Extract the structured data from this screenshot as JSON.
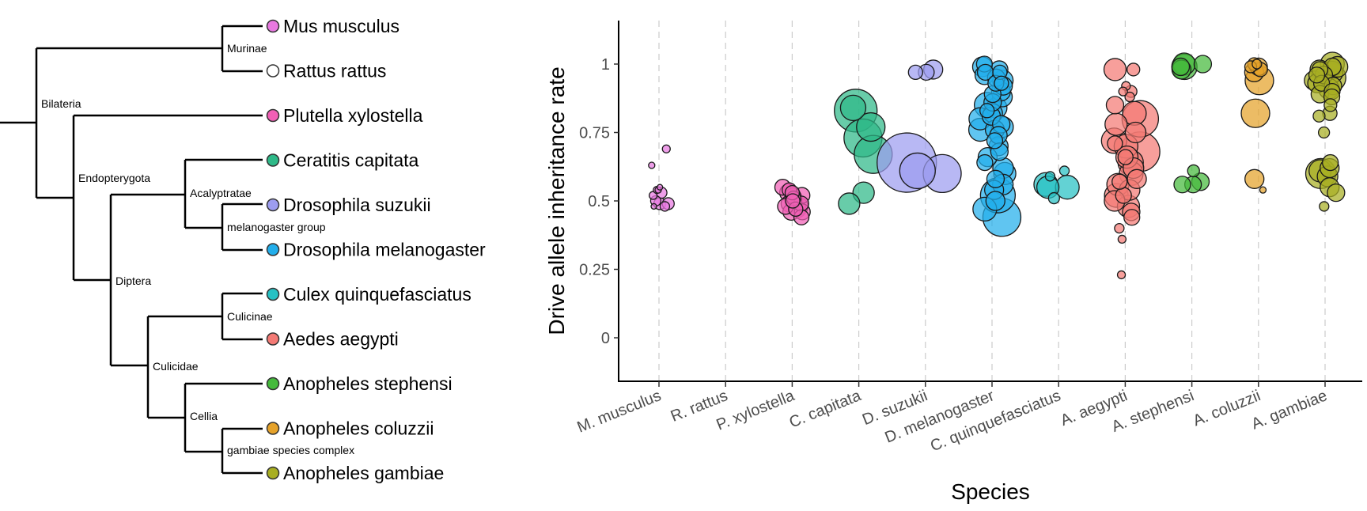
{
  "tree": {
    "leaves": [
      {
        "id": "mus",
        "label": "Mus musculus",
        "color": "#E879E0",
        "hollow": false
      },
      {
        "id": "rat",
        "label": "Rattus rattus",
        "color": "#FFFFFF",
        "hollow": true
      },
      {
        "id": "plu",
        "label": "Plutella xylostella",
        "color": "#F15FB5",
        "hollow": false
      },
      {
        "id": "cer",
        "label": "Ceratitis capitata",
        "color": "#2EB988",
        "hollow": false
      },
      {
        "id": "dsu",
        "label": "Drosophila suzukii",
        "color": "#9D9DF0",
        "hollow": false
      },
      {
        "id": "dme",
        "label": "Drosophila melanogaster",
        "color": "#22AEEB",
        "hollow": false
      },
      {
        "id": "cul",
        "label": "Culex quinquefasciatus",
        "color": "#27C1C4",
        "hollow": false
      },
      {
        "id": "aed",
        "label": "Aedes aegypti",
        "color": "#F47A75",
        "hollow": false
      },
      {
        "id": "ast",
        "label": "Anopheles stephensi",
        "color": "#45BA3C",
        "hollow": false
      },
      {
        "id": "aco",
        "label": "Anopheles coluzzii",
        "color": "#E5A22A",
        "hollow": false
      },
      {
        "id": "aga",
        "label": "Anopheles gambiae",
        "color": "#A8AE22",
        "hollow": false
      }
    ],
    "clades": {
      "murinae": "Murinae",
      "bilateria": "Bilateria",
      "endopterygota": "Endopterygota",
      "acalyptratae": "Acalyptratae",
      "melanogaster_group": "melanogaster group",
      "diptera": "Diptera",
      "culicinae": "Culicinae",
      "culicidae": "Culicidae",
      "cellia": "Cellia",
      "gambiae_complex": "gambiae species complex"
    }
  },
  "chart_data": {
    "type": "scatter",
    "xlabel": "Species",
    "ylabel": "Drive allele inheritance rate",
    "ylim": [
      -0.16,
      1.15
    ],
    "y_ticks": [
      0,
      0.25,
      0.5,
      0.75,
      1
    ],
    "y_tick_labels": [
      "0",
      "0.25",
      "0.5",
      "0.75",
      "1"
    ],
    "categories": [
      "M. musculus",
      "R. rattus",
      "P. xylostella",
      "C. capitata",
      "D. suzukii",
      "D. melanogaster",
      "C. quinquefasciatus",
      "A. aegypti",
      "A. stephensi",
      "A. coluzzii",
      "A. gambiae"
    ],
    "grid": "vertical dashed guides at each category",
    "series": [
      {
        "category": "M. musculus",
        "color": "#E879E0",
        "points": [
          {
            "y": 0.69,
            "s": 1
          },
          {
            "y": 0.63,
            "s": 0.8
          },
          {
            "y": 0.55,
            "s": 0.7
          },
          {
            "y": 0.54,
            "s": 0.9
          },
          {
            "y": 0.54,
            "s": 0.8
          },
          {
            "y": 0.53,
            "s": 1.4
          },
          {
            "y": 0.52,
            "s": 1
          },
          {
            "y": 0.5,
            "s": 1.3
          },
          {
            "y": 0.49,
            "s": 1.5
          },
          {
            "y": 0.49,
            "s": 1.5
          },
          {
            "y": 0.48,
            "s": 1.2
          },
          {
            "y": 0.48,
            "s": 0.7
          }
        ]
      },
      {
        "category": "R. rattus",
        "color": "#FFFFFF",
        "points": []
      },
      {
        "category": "P. xylostella",
        "color": "#F15FB5",
        "points": [
          {
            "y": 0.55,
            "s": 2
          },
          {
            "y": 0.54,
            "s": 1.8
          },
          {
            "y": 0.53,
            "s": 2.2
          },
          {
            "y": 0.52,
            "s": 2
          },
          {
            "y": 0.52,
            "s": 1.9
          },
          {
            "y": 0.51,
            "s": 2.1
          },
          {
            "y": 0.51,
            "s": 1.8
          },
          {
            "y": 0.5,
            "s": 2.3
          },
          {
            "y": 0.5,
            "s": 2
          },
          {
            "y": 0.49,
            "s": 2.1
          },
          {
            "y": 0.49,
            "s": 1.9
          },
          {
            "y": 0.48,
            "s": 2.2
          },
          {
            "y": 0.48,
            "s": 2
          },
          {
            "y": 0.47,
            "s": 2.1
          },
          {
            "y": 0.47,
            "s": 1.8
          },
          {
            "y": 0.46,
            "s": 2
          },
          {
            "y": 0.46,
            "s": 2.1
          },
          {
            "y": 0.44,
            "s": 1.9
          },
          {
            "y": 0.53,
            "s": 1.8
          },
          {
            "y": 0.5,
            "s": 1.8
          }
        ]
      },
      {
        "category": "C. capitata",
        "color": "#2EB988",
        "points": [
          {
            "y": 0.83,
            "s": 5.4
          },
          {
            "y": 0.84,
            "s": 3.2
          },
          {
            "y": 0.77,
            "s": 3.6
          },
          {
            "y": 0.73,
            "s": 4.8
          },
          {
            "y": 0.67,
            "s": 4.8
          },
          {
            "y": 0.53,
            "s": 2.7
          },
          {
            "y": 0.49,
            "s": 2.7
          }
        ]
      },
      {
        "category": "D. suzukii",
        "color": "#9D9DF0",
        "points": [
          {
            "y": 0.98,
            "s": 2.4
          },
          {
            "y": 0.97,
            "s": 2
          },
          {
            "y": 0.97,
            "s": 1.8
          },
          {
            "y": 0.64,
            "s": 7.5
          },
          {
            "y": 0.61,
            "s": 4.5
          },
          {
            "y": 0.6,
            "s": 4.8
          }
        ]
      },
      {
        "category": "D. melanogaster",
        "color": "#22AEEB",
        "points": [
          {
            "y": 1,
            "s": 2
          },
          {
            "y": 0.99,
            "s": 2.5
          },
          {
            "y": 0.98,
            "s": 2.2
          },
          {
            "y": 0.97,
            "s": 2
          },
          {
            "y": 0.96,
            "s": 2.4
          },
          {
            "y": 0.95,
            "s": 2.2
          },
          {
            "y": 0.94,
            "s": 2.6
          },
          {
            "y": 0.93,
            "s": 2
          },
          {
            "y": 0.92,
            "s": 2.3
          },
          {
            "y": 0.9,
            "s": 2.4
          },
          {
            "y": 0.89,
            "s": 2.1
          },
          {
            "y": 0.88,
            "s": 2.5
          },
          {
            "y": 0.86,
            "s": 2.2
          },
          {
            "y": 0.85,
            "s": 3.2
          },
          {
            "y": 0.84,
            "s": 2.6
          },
          {
            "y": 0.82,
            "s": 2.4
          },
          {
            "y": 0.81,
            "s": 2.3
          },
          {
            "y": 0.8,
            "s": 2.8
          },
          {
            "y": 0.78,
            "s": 2.2
          },
          {
            "y": 0.77,
            "s": 2.6
          },
          {
            "y": 0.76,
            "s": 2.4
          },
          {
            "y": 0.74,
            "s": 2.2
          },
          {
            "y": 0.72,
            "s": 2
          },
          {
            "y": 0.7,
            "s": 2.4
          },
          {
            "y": 0.68,
            "s": 2.2
          },
          {
            "y": 0.66,
            "s": 2.4
          },
          {
            "y": 0.64,
            "s": 2
          },
          {
            "y": 0.62,
            "s": 2.6
          },
          {
            "y": 0.6,
            "s": 2.8
          },
          {
            "y": 0.58,
            "s": 2.2
          },
          {
            "y": 0.56,
            "s": 2.6
          },
          {
            "y": 0.54,
            "s": 2.4
          },
          {
            "y": 0.52,
            "s": 4.4
          },
          {
            "y": 0.5,
            "s": 2.4
          },
          {
            "y": 0.47,
            "s": 3
          },
          {
            "y": 0.44,
            "s": 4.8
          },
          {
            "y": 0.97,
            "s": 1.8
          },
          {
            "y": 0.93,
            "s": 1.8
          },
          {
            "y": 0.83,
            "s": 1.8
          },
          {
            "y": 0.76,
            "s": 2.9
          }
        ]
      },
      {
        "category": "C. quinquefasciatus",
        "color": "#27C1C4",
        "points": [
          {
            "y": 0.61,
            "s": 1.2
          },
          {
            "y": 0.59,
            "s": 1.2
          },
          {
            "y": 0.56,
            "s": 3
          },
          {
            "y": 0.55,
            "s": 3
          },
          {
            "y": 0.55,
            "s": 2.8
          },
          {
            "y": 0.51,
            "s": 1.4
          }
        ]
      },
      {
        "category": "A. aegypti",
        "color": "#F47A75",
        "points": [
          {
            "y": 0.98,
            "s": 2.8
          },
          {
            "y": 0.98,
            "s": 1.6
          },
          {
            "y": 0.92,
            "s": 1.1
          },
          {
            "y": 0.9,
            "s": 1.5
          },
          {
            "y": 0.9,
            "s": 1.1
          },
          {
            "y": 0.88,
            "s": 1.2
          },
          {
            "y": 0.85,
            "s": 2.2
          },
          {
            "y": 0.82,
            "s": 3
          },
          {
            "y": 0.8,
            "s": 4.6
          },
          {
            "y": 0.78,
            "s": 2.8
          },
          {
            "y": 0.75,
            "s": 2.6
          },
          {
            "y": 0.72,
            "s": 3.2
          },
          {
            "y": 0.7,
            "s": 3
          },
          {
            "y": 0.68,
            "s": 5
          },
          {
            "y": 0.66,
            "s": 2.8
          },
          {
            "y": 0.64,
            "s": 3.2
          },
          {
            "y": 0.62,
            "s": 2.6
          },
          {
            "y": 0.6,
            "s": 3
          },
          {
            "y": 0.58,
            "s": 2.4
          },
          {
            "y": 0.56,
            "s": 2.8
          },
          {
            "y": 0.54,
            "s": 2.6
          },
          {
            "y": 0.52,
            "s": 3
          },
          {
            "y": 0.5,
            "s": 2.6
          },
          {
            "y": 0.48,
            "s": 2.8
          },
          {
            "y": 0.46,
            "s": 2.2
          },
          {
            "y": 0.44,
            "s": 2
          },
          {
            "y": 0.4,
            "s": 1.2
          },
          {
            "y": 0.36,
            "s": 1
          },
          {
            "y": 0.23,
            "s": 1
          },
          {
            "y": 0.71,
            "s": 1.9
          },
          {
            "y": 0.57,
            "s": 1.9
          },
          {
            "y": 0.66,
            "s": 1.9
          },
          {
            "y": 0.52,
            "s": 2
          }
        ]
      },
      {
        "category": "A. stephensi",
        "color": "#45BA3C",
        "points": [
          {
            "y": 1,
            "s": 2.2
          },
          {
            "y": 1,
            "s": 2.8
          },
          {
            "y": 0.99,
            "s": 3.2
          },
          {
            "y": 0.99,
            "s": 2.2
          },
          {
            "y": 0.98,
            "s": 2.4
          },
          {
            "y": 0.61,
            "s": 1.5
          },
          {
            "y": 0.57,
            "s": 2.2
          },
          {
            "y": 0.56,
            "s": 2.1
          },
          {
            "y": 0.56,
            "s": 2.1
          }
        ]
      },
      {
        "category": "A. coluzzii",
        "color": "#E5A22A",
        "points": [
          {
            "y": 1,
            "s": 1.6
          },
          {
            "y": 1,
            "s": 1.2
          },
          {
            "y": 0.99,
            "s": 2.2
          },
          {
            "y": 0.99,
            "s": 1.5
          },
          {
            "y": 0.98,
            "s": 1.8
          },
          {
            "y": 0.97,
            "s": 2.4
          },
          {
            "y": 0.94,
            "s": 3.6
          },
          {
            "y": 0.82,
            "s": 3.6
          },
          {
            "y": 0.58,
            "s": 2.4
          },
          {
            "y": 0.54,
            "s": 0.8
          }
        ]
      },
      {
        "category": "A. gambiae",
        "color": "#A8AE22",
        "points": [
          {
            "y": 1,
            "s": 3
          },
          {
            "y": 0.99,
            "s": 2.6
          },
          {
            "y": 0.99,
            "s": 2.2
          },
          {
            "y": 0.98,
            "s": 2.4
          },
          {
            "y": 0.98,
            "s": 2
          },
          {
            "y": 0.97,
            "s": 2.8
          },
          {
            "y": 0.96,
            "s": 2.2
          },
          {
            "y": 0.95,
            "s": 3.6
          },
          {
            "y": 0.94,
            "s": 2.4
          },
          {
            "y": 0.93,
            "s": 2
          },
          {
            "y": 0.92,
            "s": 2.2
          },
          {
            "y": 0.91,
            "s": 2.6
          },
          {
            "y": 0.9,
            "s": 2
          },
          {
            "y": 0.89,
            "s": 2.2
          },
          {
            "y": 0.88,
            "s": 2
          },
          {
            "y": 0.85,
            "s": 1.6
          },
          {
            "y": 0.82,
            "s": 1.8
          },
          {
            "y": 0.81,
            "s": 1.5
          },
          {
            "y": 0.75,
            "s": 1.4
          },
          {
            "y": 0.64,
            "s": 2
          },
          {
            "y": 0.62,
            "s": 2.4
          },
          {
            "y": 0.61,
            "s": 2.8
          },
          {
            "y": 0.6,
            "s": 3.8
          },
          {
            "y": 0.59,
            "s": 2.6
          },
          {
            "y": 0.55,
            "s": 2.4
          },
          {
            "y": 0.53,
            "s": 2.2
          },
          {
            "y": 0.48,
            "s": 1.2
          },
          {
            "y": 0.96,
            "s": 2
          },
          {
            "y": 0.93,
            "s": 2.4
          }
        ]
      }
    ]
  }
}
